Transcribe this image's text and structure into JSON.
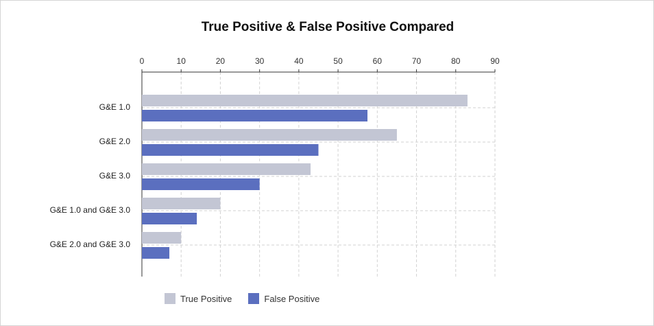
{
  "chart_data": {
    "type": "bar",
    "orientation": "horizontal",
    "title": "True Positive & False Positive Compared",
    "xlabel": "",
    "ylabel": "",
    "categories": [
      "G&E 1.0",
      "G&E 2.0",
      "G&E 3.0",
      "G&E 1.0 and G&E 3.0",
      "G&E 2.0 and G&E 3.0"
    ],
    "series": [
      {
        "name": "True Positive",
        "color": "#c3c6d4",
        "values": [
          83,
          65,
          43,
          20,
          10
        ]
      },
      {
        "name": "False Positive",
        "color": "#5b6fbf",
        "values": [
          57.5,
          45,
          30,
          14,
          7
        ]
      }
    ],
    "xlim": [
      0,
      90
    ],
    "xticks": [
      "0",
      "10",
      "20",
      "30",
      "40",
      "50",
      "60",
      "70",
      "80",
      "90"
    ],
    "x_axis_position": "top",
    "grid": true,
    "legend_position": "bottom"
  }
}
